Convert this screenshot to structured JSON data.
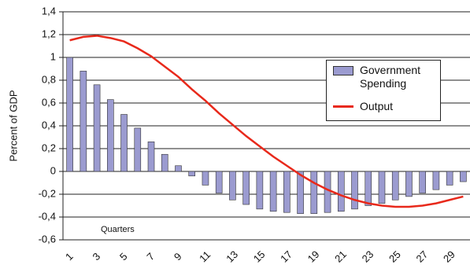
{
  "chart_data": {
    "type": "bar-line",
    "y_label": "Percent of GDP",
    "annotation": "Quarters",
    "categories": [
      1,
      null,
      3,
      null,
      5,
      null,
      7,
      null,
      9,
      null,
      11,
      null,
      13,
      null,
      15,
      null,
      17,
      null,
      19,
      null,
      21,
      null,
      23,
      null,
      25,
      null,
      27,
      null,
      29,
      null
    ],
    "series": [
      {
        "name": "Government Spending",
        "type": "bar",
        "color": "#9b9bd0",
        "values": [
          1.0,
          0.88,
          0.76,
          0.63,
          0.5,
          0.38,
          0.26,
          0.15,
          0.05,
          -0.04,
          -0.12,
          -0.19,
          -0.25,
          -0.29,
          -0.33,
          -0.35,
          -0.36,
          -0.37,
          -0.37,
          -0.36,
          -0.35,
          -0.33,
          -0.3,
          -0.28,
          -0.25,
          -0.22,
          -0.19,
          -0.16,
          -0.12,
          -0.09
        ]
      },
      {
        "name": "Output",
        "type": "line",
        "color": "#e8291b",
        "values": [
          1.15,
          1.18,
          1.19,
          1.17,
          1.14,
          1.08,
          1.01,
          0.92,
          0.83,
          0.72,
          0.62,
          0.51,
          0.41,
          0.31,
          0.22,
          0.13,
          0.05,
          -0.03,
          -0.1,
          -0.16,
          -0.21,
          -0.25,
          -0.28,
          -0.3,
          -0.31,
          -0.31,
          -0.3,
          -0.28,
          -0.25,
          -0.22
        ]
      }
    ],
    "ylim": [
      -0.6,
      1.4
    ],
    "yticks": [
      {
        "value": -0.6,
        "label": "-0,6"
      },
      {
        "value": -0.4,
        "label": "-0,4"
      },
      {
        "value": -0.2,
        "label": "-0,2"
      },
      0,
      {
        "value": 0.2,
        "label": "0,2"
      },
      {
        "value": 0.4,
        "label": "0,4"
      },
      {
        "value": 0.6,
        "label": "0,6"
      },
      {
        "value": 0.8,
        "label": "0,8"
      },
      1,
      {
        "value": 1.2,
        "label": "1,2"
      },
      {
        "value": 1.4,
        "label": "1,4"
      }
    ],
    "grid": true
  }
}
